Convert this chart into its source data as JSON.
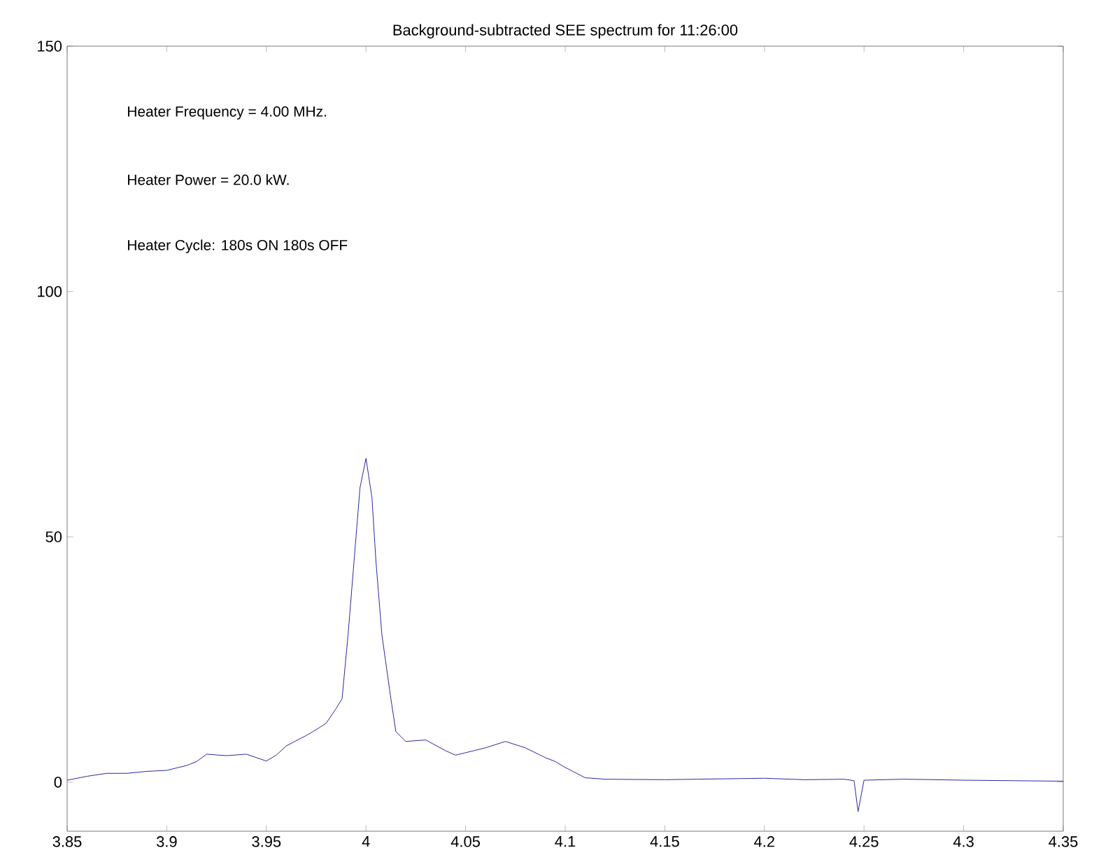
{
  "chart_data": {
    "type": "line",
    "title": "Background-subtracted SEE spectrum for 11:26:00",
    "annotations": [
      "Heater Frequency =   4.00 MHz.",
      "Heater Power =  20.0 kW.",
      "Heater Cycle: 180s ON 180s OFF"
    ],
    "xlim": [
      3.85,
      4.35
    ],
    "xticks": [
      3.85,
      3.9,
      3.95,
      4,
      4.05,
      4.1,
      4.15,
      4.2,
      4.25,
      4.3,
      4.35
    ],
    "ylim": [
      -10,
      150
    ],
    "yticks": [
      0,
      50,
      100,
      150
    ],
    "grid": false,
    "marker": "none",
    "line_style": "solid",
    "series": [
      {
        "color": "#2828a0",
        "x": [
          3.85,
          3.86,
          3.87,
          3.88,
          3.89,
          3.9,
          3.91,
          3.915,
          3.92,
          3.93,
          3.94,
          3.945,
          3.95,
          3.955,
          3.96,
          3.97,
          3.975,
          3.98,
          3.985,
          3.988,
          3.991,
          3.994,
          3.997,
          4.0,
          4.003,
          4.005,
          4.008,
          4.0125,
          4.015,
          4.02,
          4.03,
          4.04,
          4.045,
          4.05,
          4.06,
          4.07,
          4.08,
          4.09,
          4.095,
          4.1,
          4.11,
          4.12,
          4.15,
          4.2,
          4.22,
          4.24,
          4.245,
          4.247,
          4.25,
          4.27,
          4.3,
          4.35
        ],
        "values": [
          0.4,
          1.2,
          1.8,
          1.8,
          2.2,
          2.4,
          3.4,
          4.2,
          5.7,
          5.4,
          5.7,
          5.0,
          4.3,
          5.5,
          7.4,
          9.5,
          10.7,
          12,
          15,
          17,
          30,
          45,
          60,
          66,
          58,
          45,
          30,
          17,
          10.3,
          8.3,
          8.6,
          6.4,
          5.5,
          6.0,
          7.0,
          8.3,
          7.0,
          5.0,
          4.2,
          3.0,
          0.9,
          0.6,
          0.5,
          0.8,
          0.5,
          0.6,
          0.3,
          -6,
          0.4,
          0.6,
          0.4,
          0.2
        ]
      }
    ]
  }
}
